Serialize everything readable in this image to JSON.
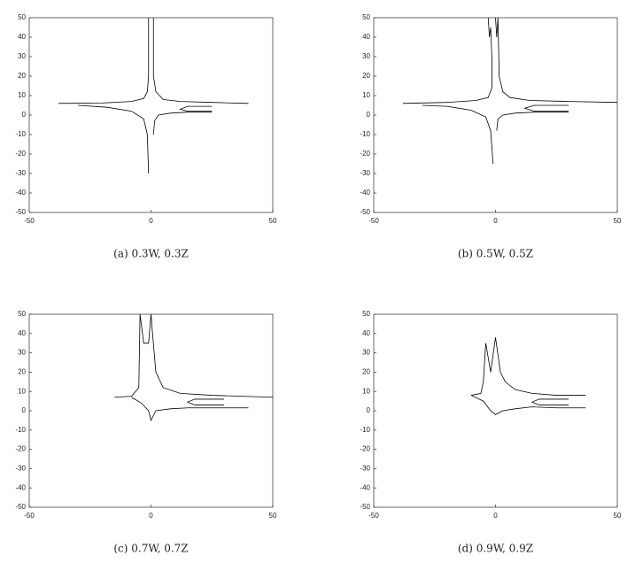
{
  "chart_data": [
    {
      "type": "line",
      "caption": "(a) 0.3W, 0.3Z",
      "xlim": [
        -50,
        50
      ],
      "ylim": [
        -50,
        50
      ],
      "xticks": [
        -50,
        0,
        50
      ],
      "yticks": [
        -50,
        -40,
        -30,
        -20,
        -10,
        0,
        10,
        20,
        30,
        40,
        50
      ],
      "series": [
        {
          "color": "#000000",
          "x": [
            -1,
            -1,
            -1.5,
            -3,
            -8,
            -20,
            -38
          ],
          "values": [
            50,
            20,
            12,
            8.5,
            7,
            6.2,
            6
          ]
        },
        {
          "color": "#000000",
          "x": [
            1,
            1,
            2,
            5,
            12,
            25,
            40
          ],
          "values": [
            50,
            20,
            12,
            8,
            7,
            6.5,
            6
          ]
        },
        {
          "color": "#000000",
          "x": [
            -1,
            -1.5,
            -3,
            -8,
            -18,
            -30
          ],
          "values": [
            -30,
            -10,
            -2,
            2,
            4,
            5
          ]
        },
        {
          "color": "#000000",
          "x": [
            1,
            1.5,
            3,
            8,
            15,
            25
          ],
          "values": [
            -10,
            -3,
            0,
            1,
            1.5,
            1.5
          ]
        },
        {
          "color": "#000000",
          "x": [
            25,
            15,
            12,
            15,
            25
          ],
          "values": [
            4.5,
            4.5,
            3,
            2,
            2
          ]
        }
      ]
    },
    {
      "type": "line",
      "caption": "(b) 0.5W, 0.5Z",
      "xlim": [
        -50,
        50
      ],
      "ylim": [
        -50,
        50
      ],
      "xticks": [
        -50,
        0,
        50
      ],
      "yticks": [
        -50,
        -40,
        -30,
        -20,
        -10,
        0,
        10,
        20,
        30,
        40,
        50
      ],
      "series": [
        {
          "color": "#000000",
          "x": [
            -3,
            -2.5,
            -2,
            -1.5,
            -1.5,
            -3,
            -8,
            -20,
            -38
          ],
          "values": [
            50,
            40,
            45,
            30,
            14,
            9,
            7.5,
            6.5,
            6
          ]
        },
        {
          "color": "#000000",
          "x": [
            0,
            0.5,
            1,
            1.5,
            3,
            6,
            14,
            30,
            50
          ],
          "values": [
            50,
            40,
            50,
            20,
            12,
            9,
            7.5,
            7,
            6.5
          ]
        },
        {
          "color": "#000000",
          "x": [
            -1,
            -2,
            -4,
            -10,
            -20,
            -30
          ],
          "values": [
            -25,
            -8,
            -1,
            2.5,
            4.5,
            5
          ]
        },
        {
          "color": "#000000",
          "x": [
            0.5,
            1,
            3,
            8,
            16,
            30
          ],
          "values": [
            -8,
            -2,
            0,
            1,
            1.5,
            1.5
          ]
        },
        {
          "color": "#000000",
          "x": [
            30,
            16,
            12,
            16,
            30
          ],
          "values": [
            5,
            5,
            3.5,
            2,
            2
          ]
        }
      ]
    },
    {
      "type": "line",
      "caption": "(c) 0.7W, 0.7Z",
      "xlim": [
        -50,
        50
      ],
      "ylim": [
        -50,
        50
      ],
      "xticks": [
        -50,
        0,
        50
      ],
      "yticks": [
        -50,
        -40,
        -30,
        -20,
        -10,
        0,
        10,
        20,
        30,
        40,
        50
      ],
      "series": [
        {
          "color": "#000000",
          "x": [
            -15,
            -8,
            -5,
            -4.5,
            -3,
            -1,
            0,
            0.5,
            2,
            5,
            12,
            25,
            50
          ],
          "values": [
            7,
            7.5,
            12,
            50,
            35,
            35,
            50,
            42,
            20,
            12,
            9,
            8,
            7
          ]
        },
        {
          "color": "#000000",
          "x": [
            -8,
            -4,
            -1,
            0,
            2,
            8,
            15,
            25,
            40
          ],
          "values": [
            7,
            4,
            0,
            -5,
            0,
            1,
            1.5,
            1.5,
            1.5
          ]
        },
        {
          "color": "#000000",
          "x": [
            30,
            18,
            15,
            18,
            30
          ],
          "values": [
            6,
            6,
            4.5,
            3,
            3
          ]
        }
      ]
    },
    {
      "type": "line",
      "caption": "(d) 0.9W, 0.9Z",
      "xlim": [
        -50,
        50
      ],
      "ylim": [
        -50,
        50
      ],
      "xticks": [
        -50,
        0,
        50
      ],
      "yticks": [
        -50,
        -40,
        -30,
        -20,
        -10,
        0,
        10,
        20,
        30,
        40,
        50
      ],
      "series": [
        {
          "color": "#000000",
          "x": [
            -10,
            -6,
            -5,
            -4,
            -2,
            0,
            2,
            4,
            8,
            15,
            25,
            37
          ],
          "values": [
            8,
            9,
            15,
            35,
            20,
            38,
            20,
            15,
            11,
            9,
            8,
            8
          ]
        },
        {
          "color": "#000000",
          "x": [
            -10,
            -5,
            -2,
            0,
            3,
            8,
            15,
            25,
            37
          ],
          "values": [
            8,
            5,
            0,
            -2,
            0,
            1,
            2,
            1.5,
            1.5
          ]
        },
        {
          "color": "#000000",
          "x": [
            30,
            18,
            15,
            18,
            30
          ],
          "values": [
            6,
            6,
            4.5,
            3,
            3
          ]
        }
      ]
    }
  ]
}
